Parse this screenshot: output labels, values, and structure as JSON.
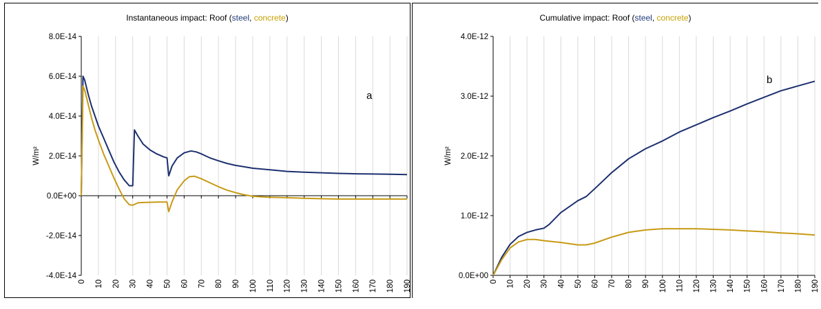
{
  "colors": {
    "steel": "#1b2f6e",
    "concrete": "#c79a14",
    "grid": "#d9d9d9",
    "axis": "#000000"
  },
  "chart_data": [
    {
      "type": "line",
      "title": "Instantaneous impact: Roof (steel, concrete)",
      "title_parts": {
        "prefix": "Instantaneous impact: Roof (",
        "steel": "steel",
        "sep": ", ",
        "concrete": "concrete",
        "suffix": ")"
      },
      "panel_label": "a",
      "ylabel": "W/m²",
      "xlabel": "",
      "xlim": [
        0,
        190
      ],
      "ylim": [
        -4e-14,
        8e-14
      ],
      "x_ticks": [
        "0",
        "10",
        "20",
        "30",
        "40",
        "50",
        "60",
        "70",
        "80",
        "90",
        "100",
        "110",
        "120",
        "130",
        "140",
        "150",
        "160",
        "170",
        "180",
        "190"
      ],
      "y_ticks": [
        "-4.0E-14",
        "-2.0E-14",
        "0.0E+00",
        "2.0E-14",
        "4.0E-14",
        "6.0E-14",
        "8.0E-14"
      ],
      "grid": "vertical",
      "series": [
        {
          "name": "steel",
          "x": [
            0,
            1,
            2,
            4,
            6,
            8,
            10,
            13,
            16,
            19,
            22,
            25,
            28,
            30,
            31,
            33,
            36,
            40,
            44,
            48,
            50,
            51,
            53,
            56,
            60,
            64,
            67,
            70,
            75,
            80,
            85,
            90,
            95,
            100,
            110,
            120,
            130,
            140,
            150,
            160,
            170,
            180,
            190
          ],
          "y": [
            0,
            6e-14,
            5.8e-14,
            5.1e-14,
            4.5e-14,
            4e-14,
            3.5e-14,
            2.9e-14,
            2.3e-14,
            1.7e-14,
            1.2e-14,
            8e-15,
            5e-15,
            5e-15,
            3.3e-14,
            3e-14,
            2.6e-14,
            2.3e-14,
            2.1e-14,
            1.95e-14,
            1.9e-14,
            1e-14,
            1.5e-14,
            1.9e-14,
            2.15e-14,
            2.25e-14,
            2.2e-14,
            2.1e-14,
            1.9e-14,
            1.75e-14,
            1.62e-14,
            1.52e-14,
            1.45e-14,
            1.38e-14,
            1.3e-14,
            1.22e-14,
            1.18e-14,
            1.15e-14,
            1.12e-14,
            1.1e-14,
            1.09e-14,
            1.08e-14,
            1.06e-14
          ]
        },
        {
          "name": "concrete",
          "x": [
            0,
            1,
            2,
            4,
            6,
            8,
            10,
            13,
            16,
            19,
            22,
            25,
            28,
            30,
            33,
            36,
            40,
            45,
            50,
            51,
            53,
            56,
            60,
            63,
            66,
            70,
            75,
            80,
            85,
            90,
            95,
            100,
            110,
            120,
            130,
            140,
            150,
            160,
            170,
            180,
            190
          ],
          "y": [
            0,
            5.5e-14,
            5.3e-14,
            4.6e-14,
            3.9e-14,
            3.3e-14,
            2.8e-14,
            2.1e-14,
            1.5e-14,
            9e-15,
            3.5e-15,
            -1.5e-15,
            -4.5e-15,
            -4.8e-15,
            -3.6e-15,
            -3.4e-15,
            -3.3e-15,
            -3.2e-15,
            -3.2e-15,
            -8e-15,
            -3e-15,
            3e-15,
            7.5e-15,
            9.5e-15,
            9.8e-15,
            8.5e-15,
            6.5e-15,
            4.5e-15,
            2.8e-15,
            1.5e-15,
            5e-16,
            -3e-16,
            -8e-16,
            -1e-15,
            -1.3e-15,
            -1.5e-15,
            -1.7e-15,
            -1.7e-15,
            -1.7e-15,
            -1.7e-15,
            -1.7e-15
          ]
        }
      ]
    },
    {
      "type": "line",
      "title": "Cumulative impact: Roof (steel, concrete)",
      "title_parts": {
        "prefix": "Cumulative impact: Roof (",
        "steel": "steel",
        "sep": ", ",
        "concrete": "concrete",
        "suffix": ")"
      },
      "panel_label": "b",
      "ylabel": "W/m²",
      "xlabel": "",
      "xlim": [
        0,
        190
      ],
      "ylim": [
        0,
        4e-12
      ],
      "x_ticks": [
        "0",
        "10",
        "20",
        "30",
        "40",
        "50",
        "60",
        "70",
        "80",
        "90",
        "100",
        "110",
        "120",
        "130",
        "140",
        "150",
        "160",
        "170",
        "180",
        "190"
      ],
      "y_ticks": [
        "0.0E+00",
        "1.0E-12",
        "2.0E-12",
        "3.0E-12",
        "4.0E-12"
      ],
      "grid": "vertical",
      "series": [
        {
          "name": "steel",
          "x": [
            0,
            5,
            10,
            15,
            20,
            25,
            30,
            33,
            40,
            50,
            55,
            60,
            70,
            80,
            90,
            100,
            110,
            120,
            130,
            140,
            150,
            160,
            170,
            180,
            190
          ],
          "y": [
            0,
            3e-13,
            5.2e-13,
            6.5e-13,
            7.2e-13,
            7.6e-13,
            7.9e-13,
            8.5e-13,
            1.05e-12,
            1.25e-12,
            1.32e-12,
            1.45e-12,
            1.72e-12,
            1.95e-12,
            2.12e-12,
            2.25e-12,
            2.4e-12,
            2.52e-12,
            2.64e-12,
            2.75e-12,
            2.87e-12,
            2.98e-12,
            3.09e-12,
            3.17e-12,
            3.25e-12
          ]
        },
        {
          "name": "concrete",
          "x": [
            0,
            5,
            10,
            15,
            20,
            25,
            30,
            40,
            50,
            55,
            60,
            70,
            80,
            90,
            100,
            110,
            120,
            130,
            140,
            150,
            160,
            170,
            180,
            190
          ],
          "y": [
            0,
            2.6e-13,
            4.6e-13,
            5.6e-13,
            6e-13,
            6e-13,
            5.8e-13,
            5.5e-13,
            5.1e-13,
            5.1e-13,
            5.4e-13,
            6.4e-13,
            7.2e-13,
            7.6e-13,
            7.8e-13,
            7.8e-13,
            7.8e-13,
            7.7e-13,
            7.6e-13,
            7.45e-13,
            7.3e-13,
            7.1e-13,
            6.95e-13,
            6.75e-13
          ]
        }
      ]
    }
  ]
}
